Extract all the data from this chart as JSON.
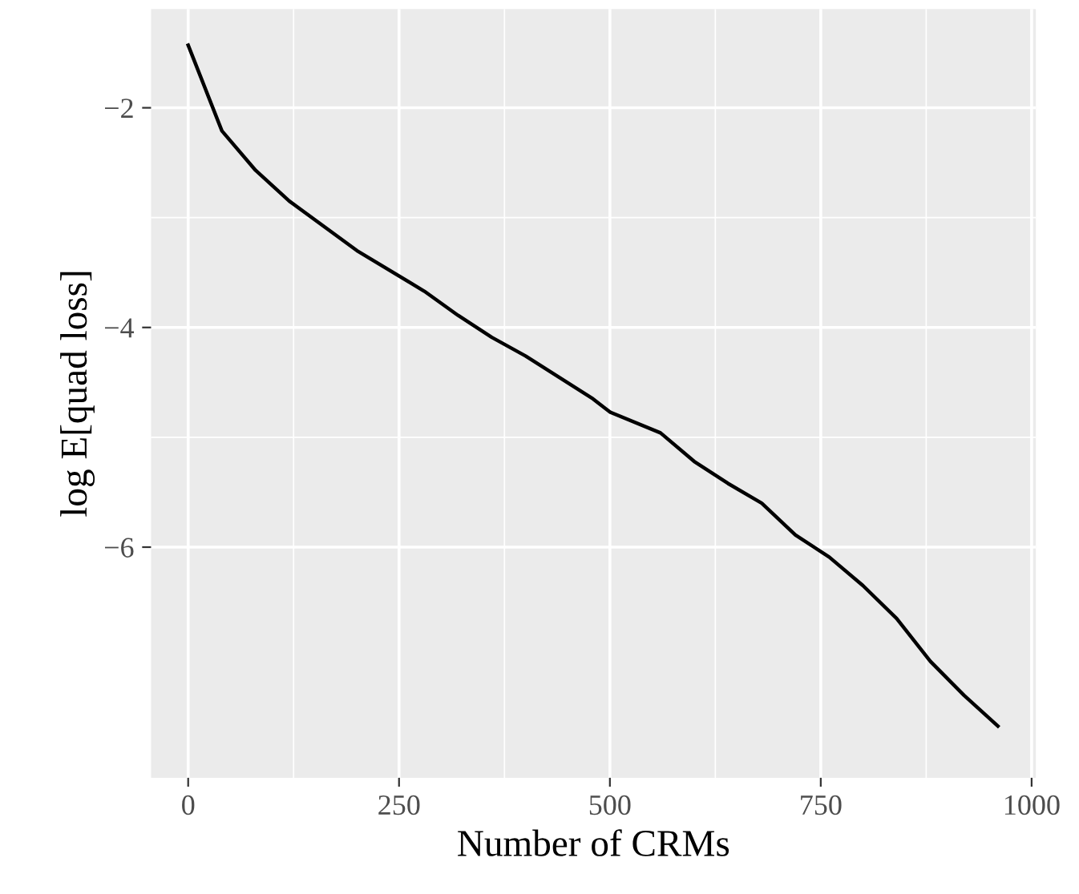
{
  "chart_data": {
    "type": "line",
    "xlabel": "Number of CRMs",
    "ylabel": "log E[quad loss]",
    "x": [
      0,
      40,
      80,
      120,
      200,
      280,
      320,
      360,
      400,
      480,
      500,
      560,
      600,
      640,
      680,
      720,
      760,
      800,
      840,
      880,
      920,
      960
    ],
    "series": [
      {
        "color": "#000000",
        "values": [
          -1.43,
          -2.21,
          -2.57,
          -2.85,
          -3.3,
          -3.67,
          -3.89,
          -4.09,
          -4.26,
          -4.65,
          -4.77,
          -4.96,
          -5.22,
          -5.42,
          -5.6,
          -5.89,
          -6.09,
          -6.35,
          -6.65,
          -7.04,
          -7.35,
          -7.63
        ]
      }
    ],
    "xlim": [
      -44,
      1005
    ],
    "ylim": [
      -8.1,
      -1.1
    ],
    "xticks": [
      0,
      250,
      500,
      750,
      1000
    ],
    "yticks": [
      -2,
      -4,
      -6
    ],
    "grid": true,
    "marker": "none",
    "line_style": "solid"
  }
}
